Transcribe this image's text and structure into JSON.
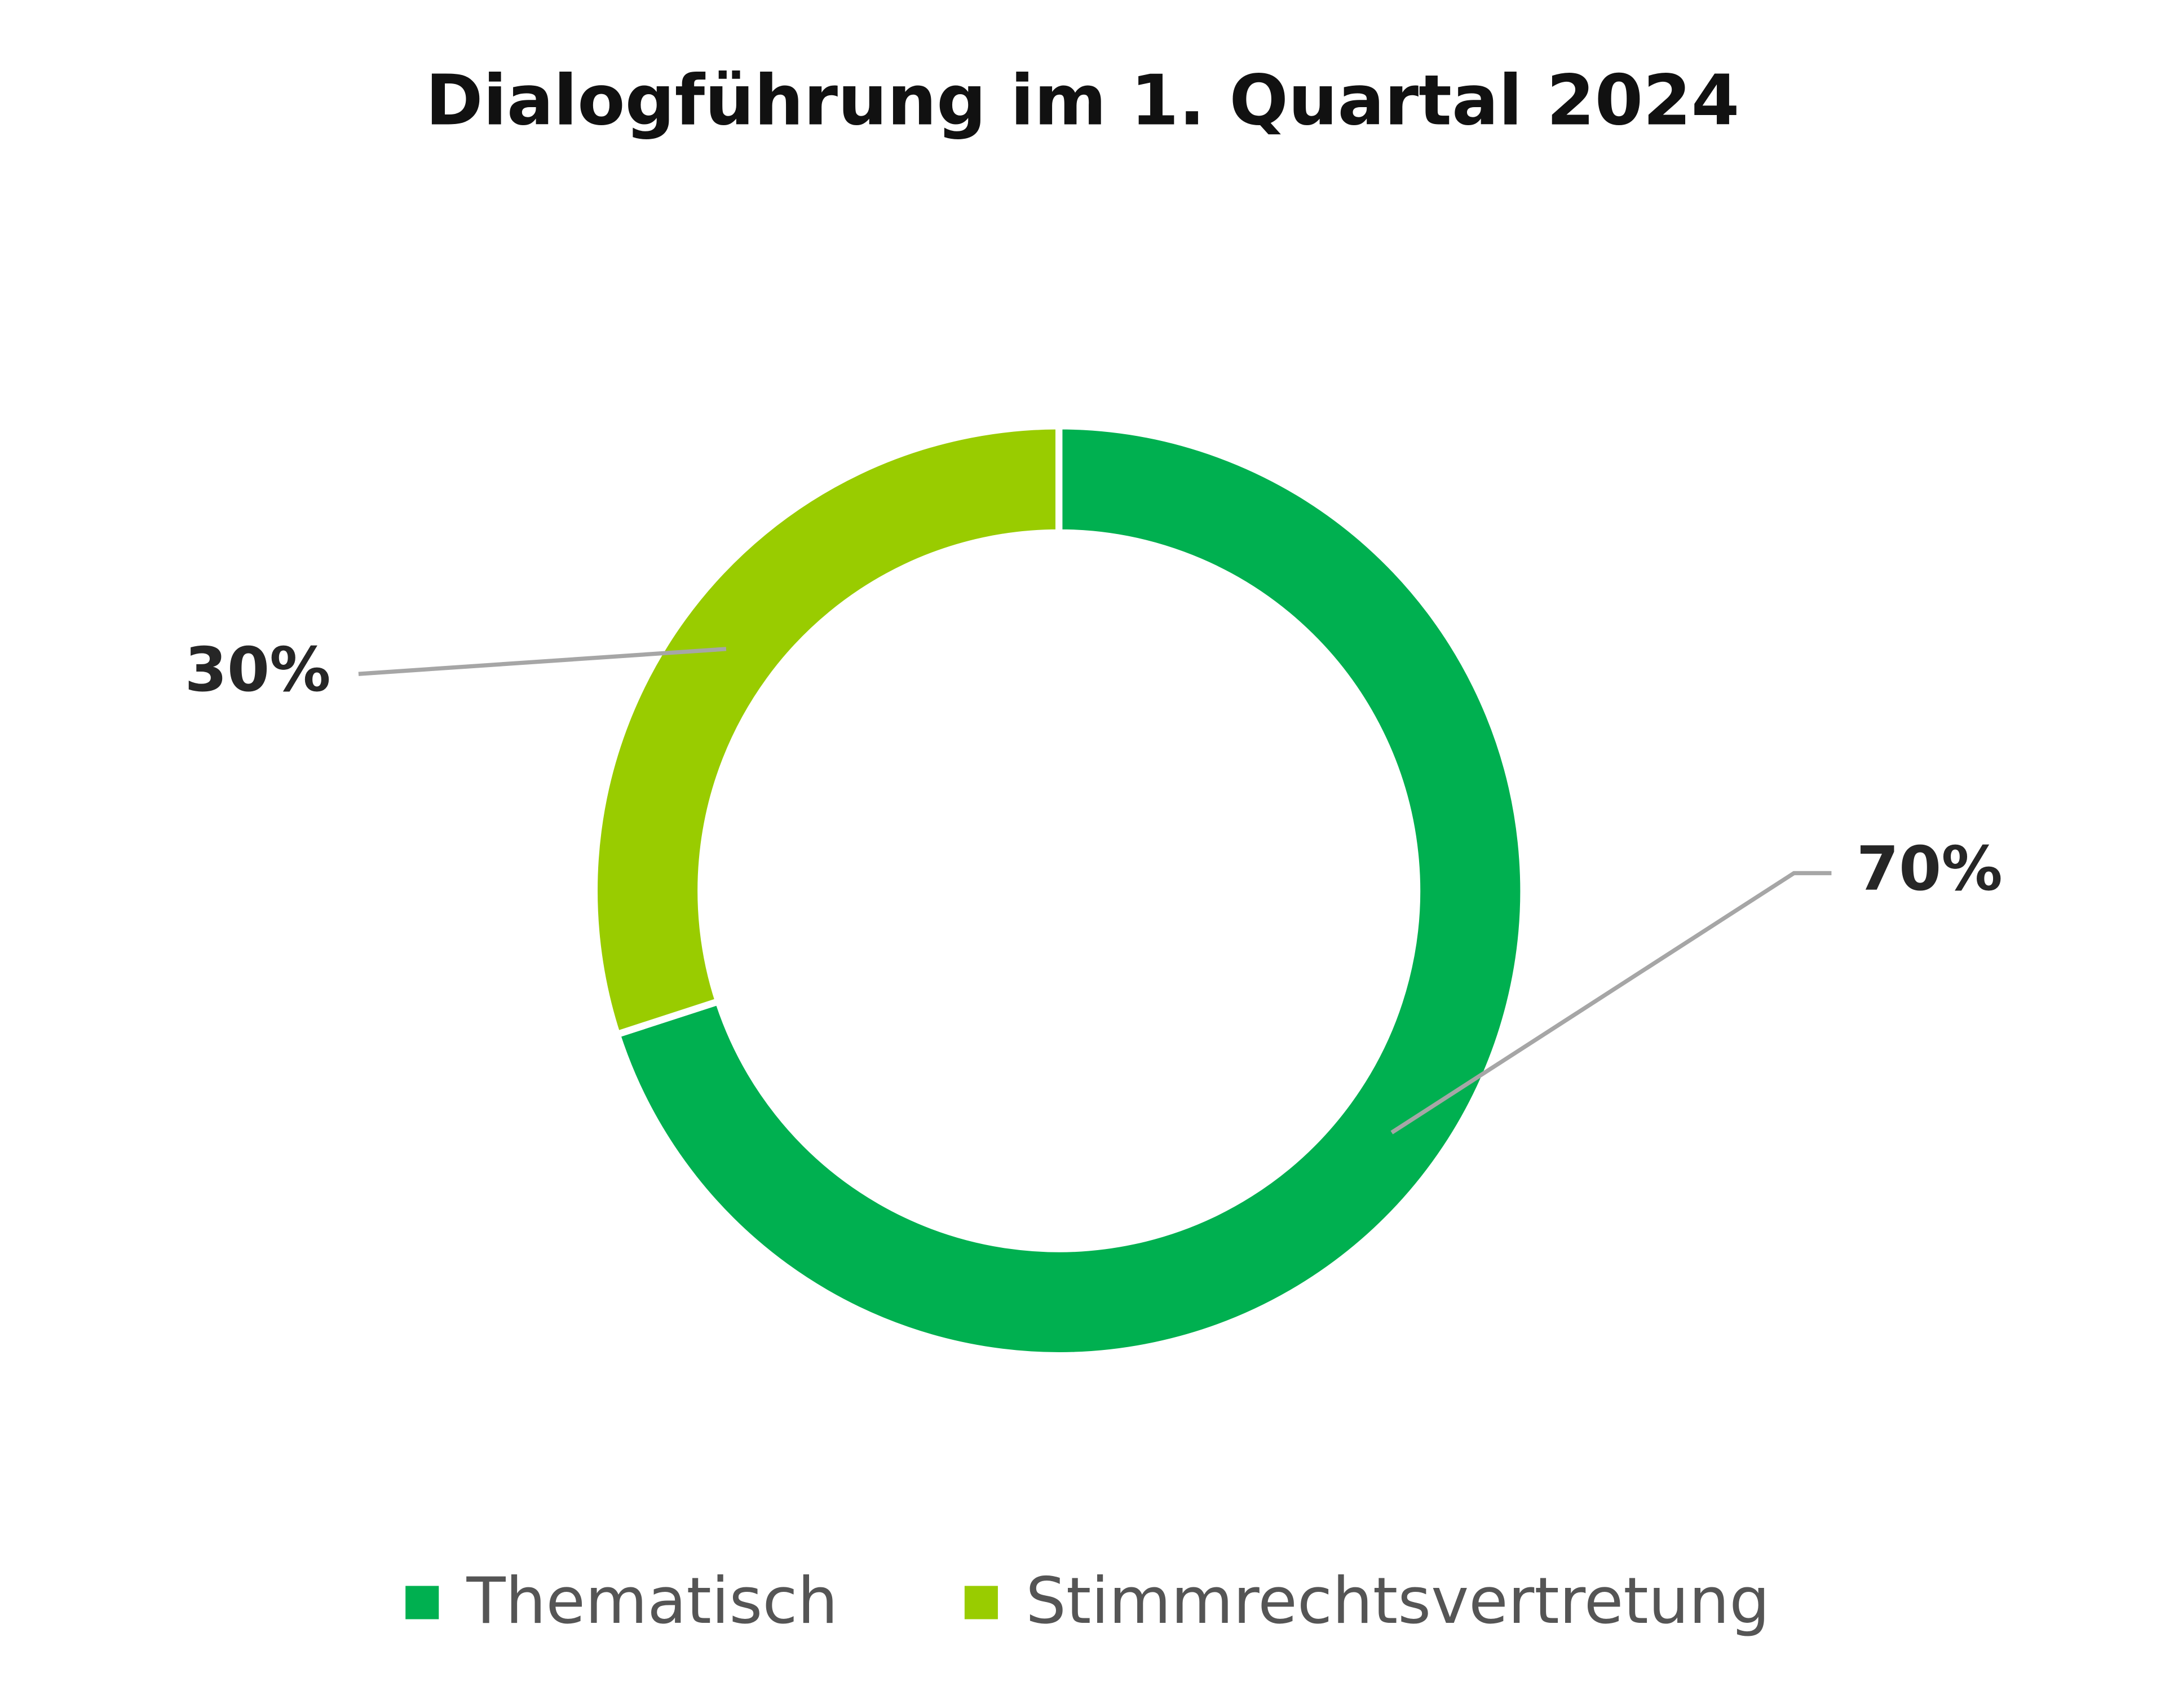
{
  "chart_data": {
    "type": "pie",
    "donut": true,
    "title": "Dialogführung im 1. Quartal 2024",
    "categories": [
      "Thematisch",
      "Stimmrechtsvertretung"
    ],
    "values": [
      70,
      30
    ],
    "value_labels": [
      "70%",
      "30%"
    ],
    "colors": [
      "#00b050",
      "#99cc00"
    ],
    "legend": "bottom"
  }
}
